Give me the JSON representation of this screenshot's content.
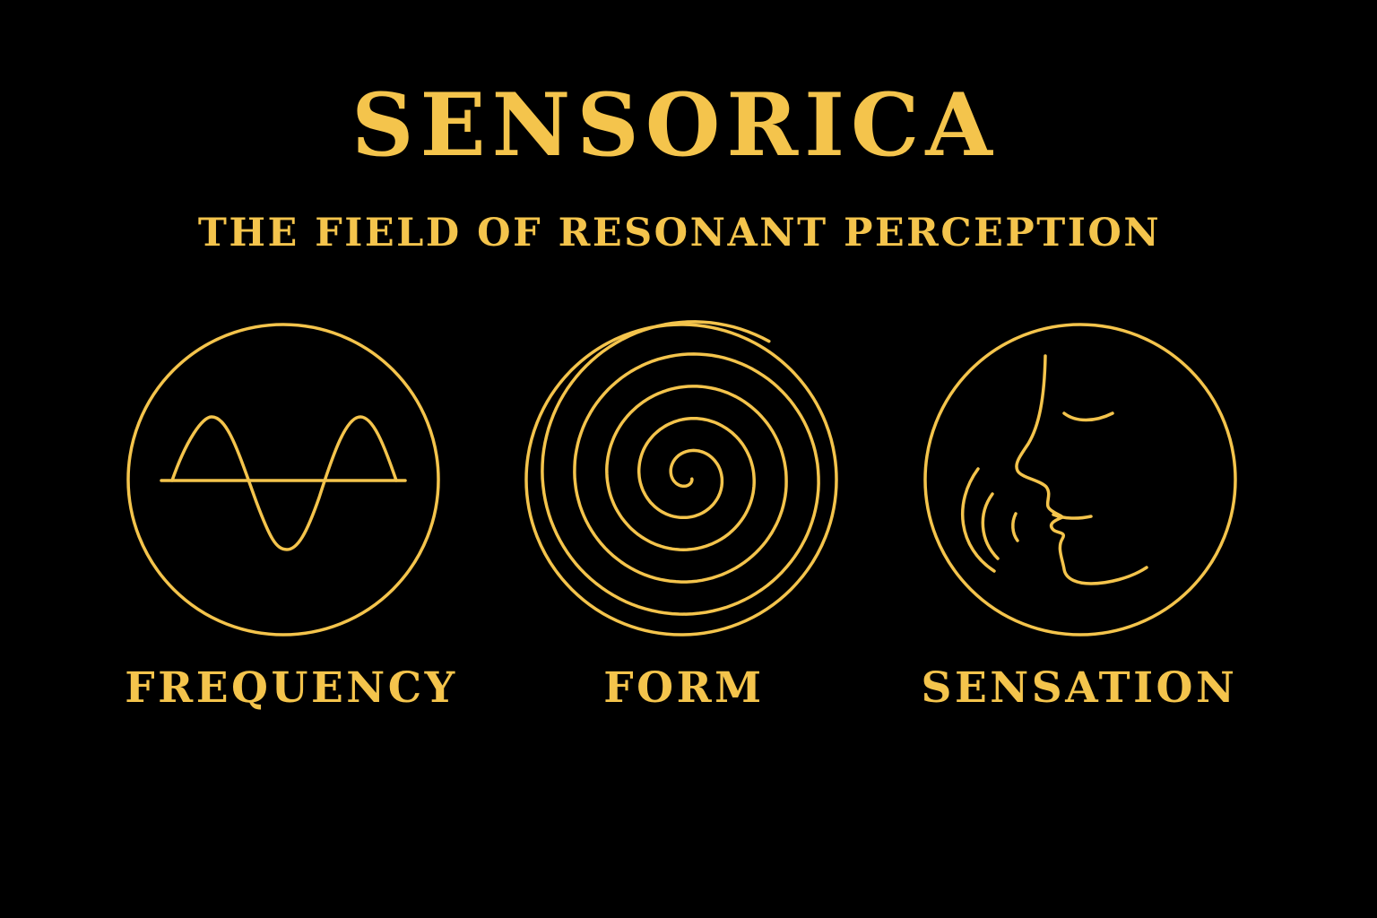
{
  "title": "SENSORICA",
  "subtitle": "THE FIELD OF RESONANT PERCEPTION",
  "colors": {
    "background": "#000000",
    "gold": "#F4C44C"
  },
  "pillars": [
    {
      "label": "FREQUENCY",
      "icon": "sine-wave-icon"
    },
    {
      "label": "FORM",
      "icon": "spiral-icon"
    },
    {
      "label": "SENSATION",
      "icon": "face-profile-sound-icon"
    }
  ]
}
